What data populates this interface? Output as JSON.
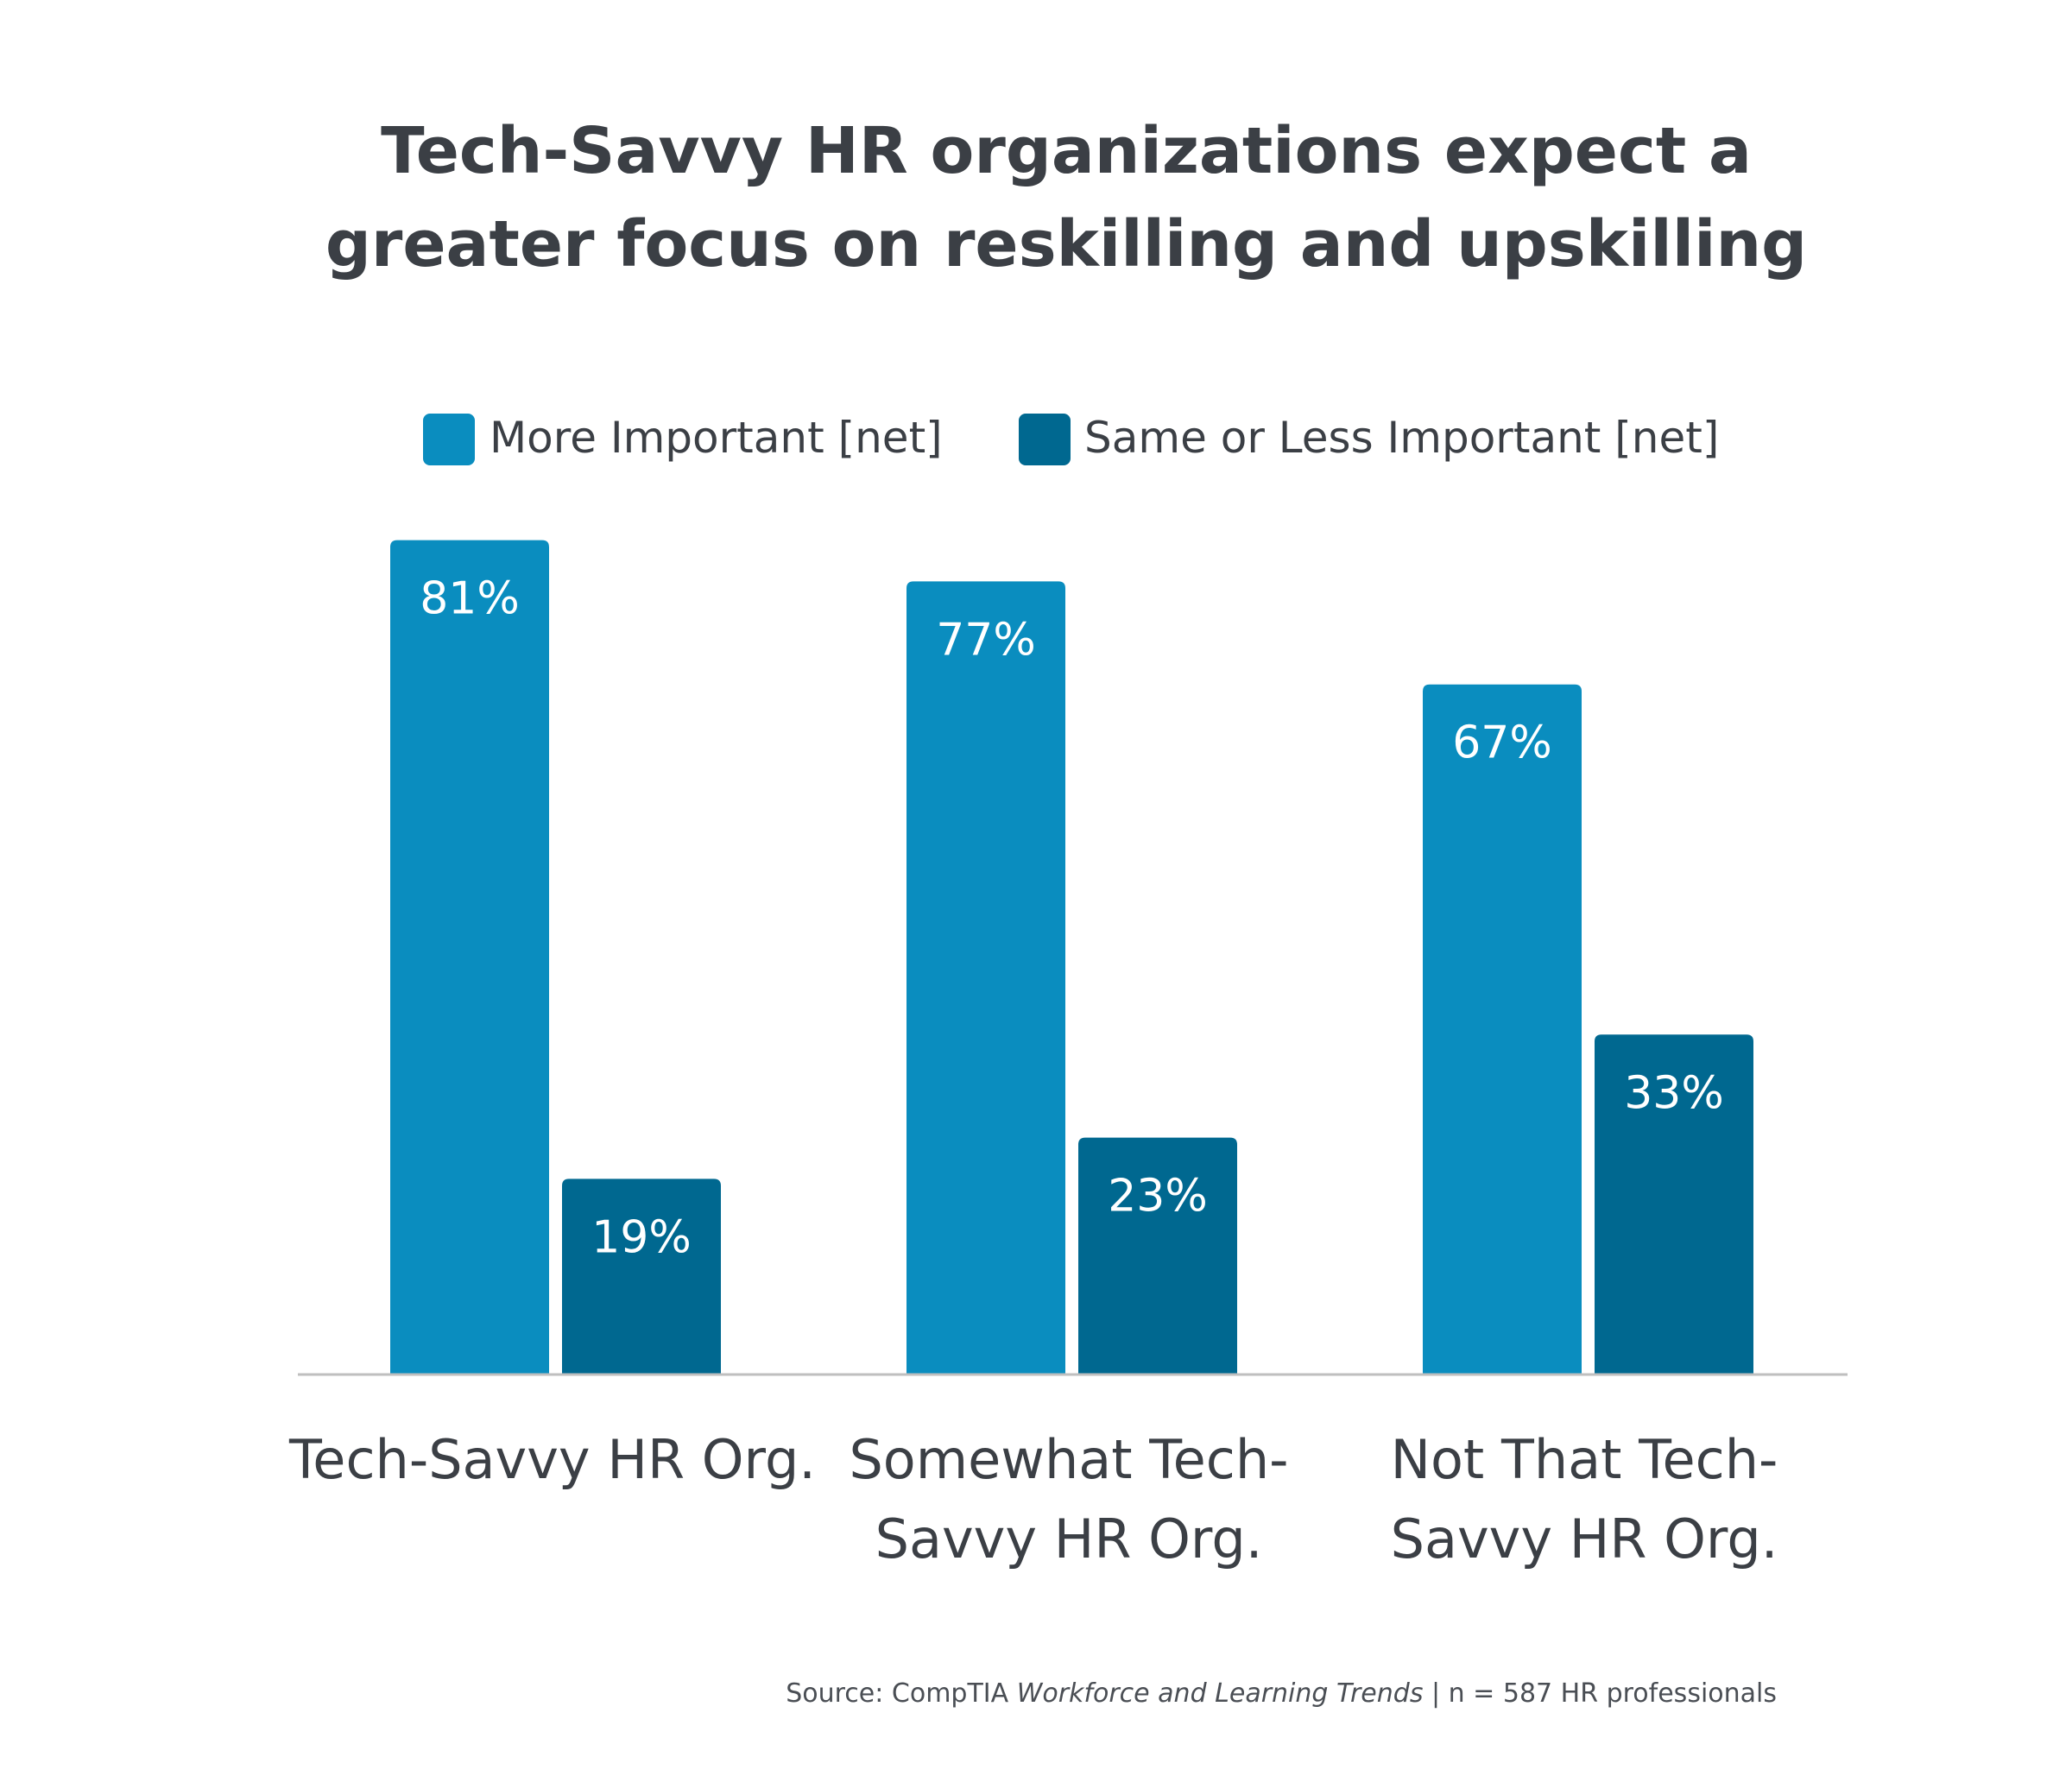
{
  "chart_data": {
    "type": "bar",
    "title": [
      "Tech-Savvy HR organizations expect a",
      "greater focus on reskilling and upskilling"
    ],
    "categories": [
      [
        "Tech-Savvy HR Org."
      ],
      [
        "Somewhat Tech-",
        "Savvy HR Org."
      ],
      [
        "Not That Tech-",
        "Savvy HR Org."
      ]
    ],
    "series": [
      {
        "name": "More Important [net]",
        "color": "#0a8dbf",
        "values": [
          81,
          77,
          67
        ],
        "labels": [
          "81%",
          "77%",
          "67%"
        ]
      },
      {
        "name": "Same or Less Important [net]",
        "color": "#006890",
        "values": [
          19,
          23,
          33
        ],
        "labels": [
          "19%",
          "23%",
          "33%"
        ]
      }
    ],
    "ylim": [
      0,
      100
    ],
    "grid": false,
    "legend_position": "top-center",
    "axis_color": "#bfbfbf"
  },
  "source": {
    "prefix": "Source: CompTIA ",
    "italic": "Workforce and Learning Trends",
    "suffix": " | n = 587 HR professionals"
  }
}
